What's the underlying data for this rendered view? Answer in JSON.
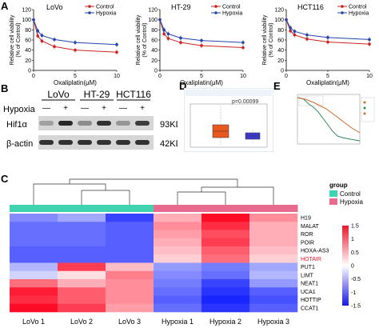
{
  "panels": {
    "a": "A",
    "b": "B",
    "c": "C",
    "d": "D",
    "e": "E"
  },
  "chart_data": [
    {
      "type": "line",
      "title": "LoVo",
      "xlabel": "Oxaliplatin(μM)",
      "ylabel": "Relative cell viability (% of Control)",
      "x": [
        0,
        0.5,
        1,
        2.5,
        5,
        10
      ],
      "xlim": [
        0,
        10
      ],
      "ylim": [
        0,
        120
      ],
      "xticks": [
        0,
        5,
        10
      ],
      "yticks": [
        0,
        20,
        40,
        60,
        80,
        100,
        120
      ],
      "legend": "top-right",
      "series": [
        {
          "name": "Control",
          "color": "#cc2222",
          "values": [
            100,
            68,
            58,
            47,
            40,
            36
          ]
        },
        {
          "name": "Hypoxia",
          "color": "#2244aa",
          "values": [
            100,
            78,
            69,
            61,
            55,
            51
          ]
        }
      ]
    },
    {
      "type": "line",
      "title": "HT-29",
      "xlabel": "Oxaliplatin(μM)",
      "ylabel": "Relative cell viability (% of Control)",
      "x": [
        0,
        0.5,
        1,
        2.5,
        5,
        10
      ],
      "xlim": [
        0,
        10
      ],
      "ylim": [
        0,
        120
      ],
      "xticks": [
        0,
        5,
        10
      ],
      "yticks": [
        0,
        20,
        40,
        60,
        80,
        100,
        120
      ],
      "legend": "top-right",
      "series": [
        {
          "name": "Control",
          "color": "#cc2222",
          "values": [
            100,
            72,
            63,
            55,
            49,
            45
          ]
        },
        {
          "name": "Hypoxia",
          "color": "#2244aa",
          "values": [
            100,
            80,
            72,
            64,
            59,
            55
          ]
        }
      ]
    },
    {
      "type": "line",
      "title": "HCT116",
      "xlabel": "Oxaliplatin(μM)",
      "ylabel": "Relative cell viability (% of Control)",
      "x": [
        0,
        0.5,
        1,
        2.5,
        5,
        10
      ],
      "xlim": [
        0,
        10
      ],
      "ylim": [
        0,
        120
      ],
      "xticks": [
        0,
        5,
        10
      ],
      "yticks": [
        0,
        20,
        40,
        60,
        80,
        100,
        120
      ],
      "legend": "top-right",
      "series": [
        {
          "name": "Control",
          "color": "#cc2222",
          "values": [
            100,
            78,
            70,
            62,
            56,
            52
          ]
        },
        {
          "name": "Hypoxia",
          "color": "#2244aa",
          "values": [
            100,
            84,
            77,
            70,
            65,
            61
          ]
        }
      ]
    },
    {
      "type": "heatmap",
      "rows": [
        "H19",
        "MALAT",
        "ROR",
        "POIR",
        "HOXA-AS3",
        "HOTAIR",
        "PUT1",
        "LIMT",
        "NEAT1",
        "UCA1",
        "HOTTIP",
        "CCAT1"
      ],
      "highlight_row": "HOTAIR",
      "highlight_color": "#e8182c",
      "columns": [
        "LoVo 1",
        "LoVo 2",
        "LoVo 3",
        "Hypoxia 1",
        "Hypoxia 2",
        "Hypoxia 3"
      ],
      "column_groups": [
        "Control",
        "Control",
        "Control",
        "Hypoxia",
        "Hypoxia",
        "Hypoxia"
      ],
      "group_legend_title": "group",
      "groups": [
        {
          "name": "Control",
          "color": "#3fd3b0"
        },
        {
          "name": "Hypoxia",
          "color": "#e86a8e"
        }
      ],
      "scale_ticks": [
        "1.5",
        "1",
        "0.5",
        "0",
        "-0.5",
        "-1",
        "-1.5"
      ],
      "scale_range": [
        -1.5,
        1.5
      ],
      "values": [
        [
          -0.8,
          -0.6,
          -1.3,
          0.5,
          1.5,
          0.7
        ],
        [
          -1.0,
          -1.0,
          -1.1,
          0.7,
          1.3,
          0.5
        ],
        [
          -1.0,
          -1.0,
          -1.1,
          0.6,
          1.1,
          0.5
        ],
        [
          -1.0,
          -1.0,
          -1.1,
          0.5,
          1.2,
          0.5
        ],
        [
          -1.1,
          -1.1,
          -1.1,
          0.4,
          1.0,
          0.4
        ],
        [
          -1.1,
          -1.1,
          -1.1,
          0.3,
          0.9,
          0.3
        ],
        [
          -0.5,
          1.2,
          0.4,
          -0.7,
          -0.9,
          -0.6
        ],
        [
          -0.3,
          0.2,
          0.8,
          -0.8,
          -1.0,
          -0.5
        ],
        [
          0.9,
          0.5,
          0.7,
          -0.9,
          -1.3,
          -0.7
        ],
        [
          1.4,
          1.0,
          0.7,
          -1.0,
          -1.4,
          -1.1
        ],
        [
          1.3,
          1.0,
          0.7,
          -1.1,
          -1.5,
          -1.2
        ],
        [
          1.5,
          1.2,
          0.6,
          -1.0,
          -1.4,
          -1.1
        ]
      ]
    }
  ],
  "western": {
    "cell_lines": [
      "LoVo",
      "HT-29",
      "HCT116"
    ],
    "condition_label": "Hypoxia",
    "signs": [
      "—",
      "+",
      "—",
      "+",
      "—",
      "+"
    ],
    "rows": [
      {
        "protein": "Hif1α",
        "size": "93KD",
        "intensity": [
          0.35,
          0.95,
          0.45,
          0.9,
          0.4,
          0.85
        ]
      },
      {
        "protein": "β-actin",
        "size": "42KD",
        "intensity": [
          0.9,
          0.9,
          0.9,
          0.9,
          0.9,
          0.9
        ]
      }
    ]
  },
  "panel_d": {
    "pvalue": "p=0.00099"
  }
}
